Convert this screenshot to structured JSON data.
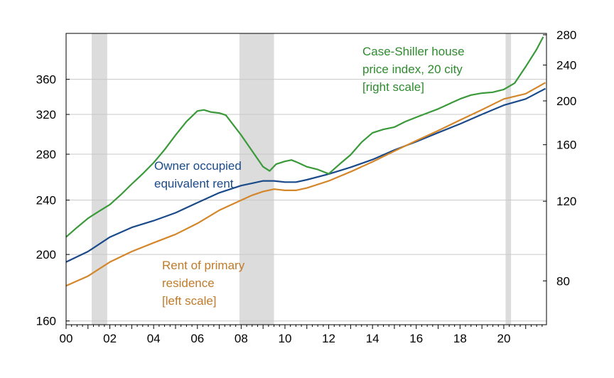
{
  "chart_data": {
    "type": "line",
    "title": "",
    "xlabel": "",
    "y_left": {
      "scale": "log",
      "ticks": [
        160,
        200,
        240,
        280,
        320,
        360
      ],
      "range": [
        158,
        420
      ]
    },
    "y_right": {
      "scale": "log",
      "ticks": [
        80,
        120,
        160,
        200,
        240,
        280
      ],
      "range": [
        64,
        282
      ]
    },
    "x_axis": {
      "range": [
        2000.0,
        2021.95
      ],
      "ticks": [
        2000,
        2002,
        2004,
        2006,
        2008,
        2010,
        2012,
        2014,
        2016,
        2018,
        2020
      ],
      "tick_labels": [
        "00",
        "02",
        "04",
        "06",
        "08",
        "10",
        "12",
        "14",
        "16",
        "18",
        "20"
      ]
    },
    "grid": true,
    "recessions": [
      [
        2001.17,
        2001.88
      ],
      [
        2007.92,
        2009.5
      ],
      [
        2020.08,
        2020.33
      ]
    ],
    "recession_color": "#dcdcdc",
    "series": [
      {
        "name": "Owner occupied equivalent rent",
        "axis": "left",
        "color": "#1a4a8a",
        "x": [
          2000.0,
          2001.0,
          2002.0,
          2003.0,
          2004.0,
          2005.0,
          2006.0,
          2007.0,
          2008.0,
          2008.5,
          2009.0,
          2009.5,
          2010.0,
          2010.5,
          2011.0,
          2012.0,
          2013.0,
          2014.0,
          2015.0,
          2016.0,
          2017.0,
          2018.0,
          2019.0,
          2020.0,
          2021.0,
          2021.9
        ],
        "values": [
          195,
          202,
          212,
          219,
          224,
          230,
          238,
          246,
          252,
          254,
          256,
          256,
          255,
          255,
          257,
          262,
          268,
          275,
          284,
          292,
          301,
          310,
          320,
          330,
          337,
          349
        ]
      },
      {
        "name": "Rent of primary residence [left scale]",
        "axis": "left",
        "color": "#d4872a",
        "x": [
          2000.0,
          2001.0,
          2002.0,
          2003.0,
          2004.0,
          2005.0,
          2006.0,
          2007.0,
          2008.0,
          2008.5,
          2009.0,
          2009.5,
          2010.0,
          2010.5,
          2011.0,
          2012.0,
          2013.0,
          2014.0,
          2015.0,
          2016.0,
          2017.0,
          2018.0,
          2019.0,
          2020.0,
          2021.0,
          2021.9
        ],
        "values": [
          180,
          186,
          195,
          202,
          208,
          214,
          222,
          232,
          240,
          244,
          247,
          249,
          248,
          248,
          250,
          256,
          264,
          273,
          283,
          293,
          303,
          314,
          325,
          337,
          343,
          356
        ]
      },
      {
        "name": "Case-Shiller house price index, 20 city [right scale]",
        "axis": "right",
        "color": "#3a9a3a",
        "x": [
          2000.0,
          2000.5,
          2001.0,
          2001.5,
          2002.0,
          2002.5,
          2003.0,
          2003.5,
          2004.0,
          2004.5,
          2005.0,
          2005.5,
          2006.0,
          2006.3,
          2006.6,
          2007.0,
          2007.3,
          2007.6,
          2008.0,
          2008.5,
          2009.0,
          2009.3,
          2009.6,
          2010.0,
          2010.3,
          2010.6,
          2011.0,
          2011.5,
          2012.0,
          2012.5,
          2013.0,
          2013.5,
          2014.0,
          2014.5,
          2015.0,
          2015.5,
          2016.0,
          2016.5,
          2017.0,
          2017.5,
          2018.0,
          2018.5,
          2019.0,
          2019.5,
          2020.0,
          2020.5,
          2021.0,
          2021.5,
          2021.8
        ],
        "values": [
          100,
          105,
          110,
          114,
          118,
          124,
          131,
          138,
          146,
          156,
          168,
          180,
          190,
          191,
          189,
          188,
          186,
          178,
          168,
          155,
          143,
          140,
          145,
          147,
          148,
          146,
          143,
          141,
          138,
          145,
          152,
          162,
          170,
          173,
          175,
          180,
          184,
          188,
          192,
          197,
          202,
          206,
          208,
          209,
          212,
          219,
          238,
          260,
          277
        ]
      }
    ],
    "annotations": [
      {
        "lines": [
          "Case-Shiller house",
          "price index, 20 city",
          "[right scale]"
        ],
        "color": "#2e8b2e"
      },
      {
        "lines": [
          "Owner occupied",
          "equivalent rent"
        ],
        "color": "#1a4a8a"
      },
      {
        "lines": [
          "Rent of primary",
          "residence",
          "[left scale]"
        ],
        "color": "#c07a2a"
      }
    ]
  }
}
